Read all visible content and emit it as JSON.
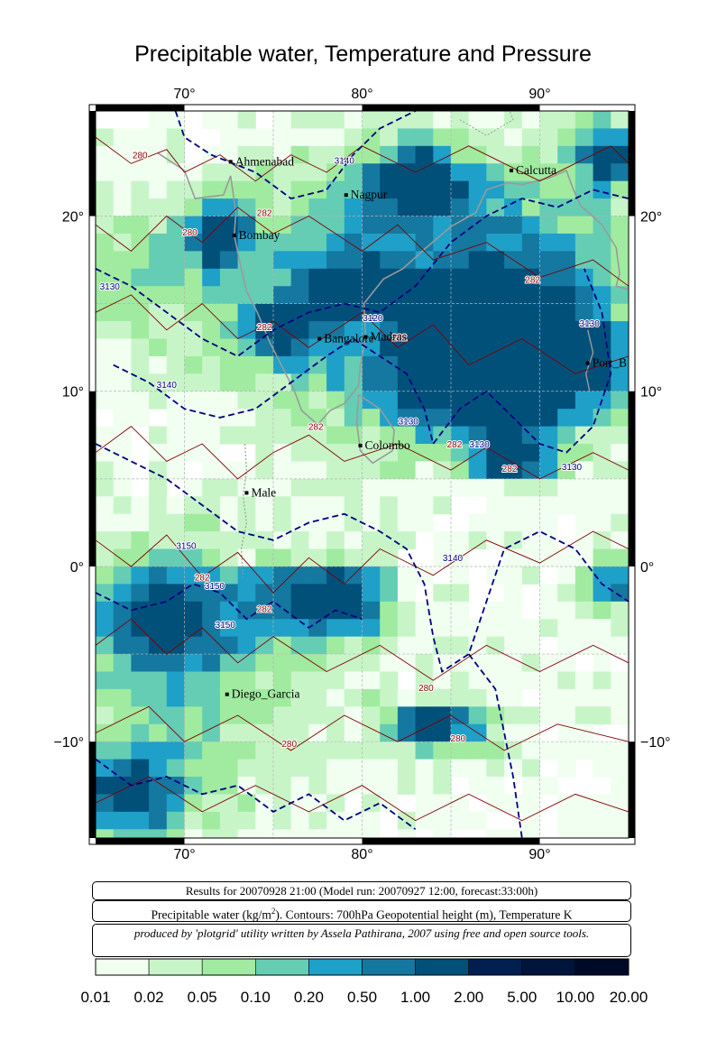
{
  "title": "Precipitable water, Temperature and Pressure",
  "map": {
    "lon_range": [
      65,
      95
    ],
    "lat_range": [
      -15.5,
      26
    ],
    "lon_ticks": [
      70,
      80,
      90
    ],
    "lat_ticks": [
      20,
      10,
      0,
      -10
    ],
    "lon_tick_labels": [
      "70°",
      "80°",
      "90°"
    ],
    "lat_tick_labels": [
      "20°",
      "10°",
      "0°",
      "−10°"
    ],
    "cities": [
      {
        "name": "Ahmenabad",
        "lon": 72.6,
        "lat": 23.1
      },
      {
        "name": "Nagpur",
        "lon": 79.1,
        "lat": 21.2
      },
      {
        "name": "Calcutta",
        "lon": 88.4,
        "lat": 22.6
      },
      {
        "name": "Bombay",
        "lon": 72.8,
        "lat": 18.9
      },
      {
        "name": "Bangalore",
        "lon": 77.6,
        "lat": 13.0
      },
      {
        "name": "Madras",
        "lon": 80.2,
        "lat": 13.1
      },
      {
        "name": "Port_B",
        "lon": 92.7,
        "lat": 11.6
      },
      {
        "name": "Colombo",
        "lon": 79.9,
        "lat": 6.9
      },
      {
        "name": "Male",
        "lon": 73.5,
        "lat": 4.2
      },
      {
        "name": "Diego_Garcia",
        "lon": 72.4,
        "lat": -7.3
      }
    ],
    "contour_labels": [
      {
        "text": "280",
        "lon": 67.5,
        "lat": 23.3,
        "kind": "temp"
      },
      {
        "text": "3140",
        "lon": 79.0,
        "lat": 23.0,
        "kind": "height"
      },
      {
        "text": "282",
        "lon": 74.5,
        "lat": 20.0,
        "kind": "temp"
      },
      {
        "text": "280",
        "lon": 70.3,
        "lat": 18.9,
        "kind": "temp"
      },
      {
        "text": "3130",
        "lon": 65.8,
        "lat": 15.8,
        "kind": "height"
      },
      {
        "text": "282",
        "lon": 89.6,
        "lat": 16.2,
        "kind": "temp"
      },
      {
        "text": "282",
        "lon": 74.5,
        "lat": 13.5,
        "kind": "temp"
      },
      {
        "text": "3120",
        "lon": 80.6,
        "lat": 14.0,
        "kind": "height"
      },
      {
        "text": "3130",
        "lon": 92.8,
        "lat": 13.7,
        "kind": "height"
      },
      {
        "text": "3140",
        "lon": 69.0,
        "lat": 10.2,
        "kind": "height"
      },
      {
        "text": "282",
        "lon": 82.1,
        "lat": 12.9,
        "kind": "temp"
      },
      {
        "text": "282",
        "lon": 77.4,
        "lat": 7.8,
        "kind": "temp"
      },
      {
        "text": "3130",
        "lon": 82.6,
        "lat": 8.1,
        "kind": "height"
      },
      {
        "text": "282",
        "lon": 85.2,
        "lat": 6.8,
        "kind": "temp"
      },
      {
        "text": "3130",
        "lon": 86.6,
        "lat": 6.8,
        "kind": "height"
      },
      {
        "text": "282",
        "lon": 88.3,
        "lat": 5.4,
        "kind": "temp"
      },
      {
        "text": "3130",
        "lon": 91.8,
        "lat": 5.5,
        "kind": "height"
      },
      {
        "text": "3150",
        "lon": 70.1,
        "lat": 1.0,
        "kind": "height"
      },
      {
        "text": "3140",
        "lon": 85.1,
        "lat": 0.3,
        "kind": "height"
      },
      {
        "text": "282",
        "lon": 71.0,
        "lat": -0.8,
        "kind": "temp"
      },
      {
        "text": "3150",
        "lon": 71.7,
        "lat": -1.3,
        "kind": "height"
      },
      {
        "text": "282",
        "lon": 74.5,
        "lat": -2.6,
        "kind": "temp"
      },
      {
        "text": "3150",
        "lon": 72.3,
        "lat": -3.5,
        "kind": "height"
      },
      {
        "text": "280",
        "lon": 83.6,
        "lat": -7.1,
        "kind": "temp"
      },
      {
        "text": "280",
        "lon": 75.9,
        "lat": -10.3,
        "kind": "temp"
      },
      {
        "text": "280",
        "lon": 85.4,
        "lat": -10.0,
        "kind": "temp"
      }
    ],
    "colors": {
      "temperature_contour": "#800000",
      "height_contour": "#00007f",
      "coastline": "#9a9a9a",
      "temperature_label": "#8b0000",
      "height_label": "#00007f"
    }
  },
  "info": {
    "line1": "Results for 20070928 21:00 (Model run: 20070927 12:00, forecast:33:00h)",
    "line2_prefix": "Precipitable water (kg/m",
    "line2_sup": "2",
    "line2_suffix": ").  Contours: 700hPa Geopotential height (m), Temperature K",
    "line3": "produced by 'plotgrid' utility written by Assela Pathirana, 2007 using free and open source tools."
  },
  "colorbar": {
    "labels": [
      "0.01",
      "0.02",
      "0.05",
      "0.10",
      "0.20",
      "0.50",
      "1.00",
      "2.00",
      "5.00",
      "10.00",
      "20.00"
    ],
    "colors": [
      "#f0fff0",
      "#c8f5c8",
      "#a0eba0",
      "#64cdb4",
      "#1ea0c8",
      "#1478a0",
      "#00507a",
      "#001e50",
      "#00143c",
      "#000a28"
    ]
  }
}
